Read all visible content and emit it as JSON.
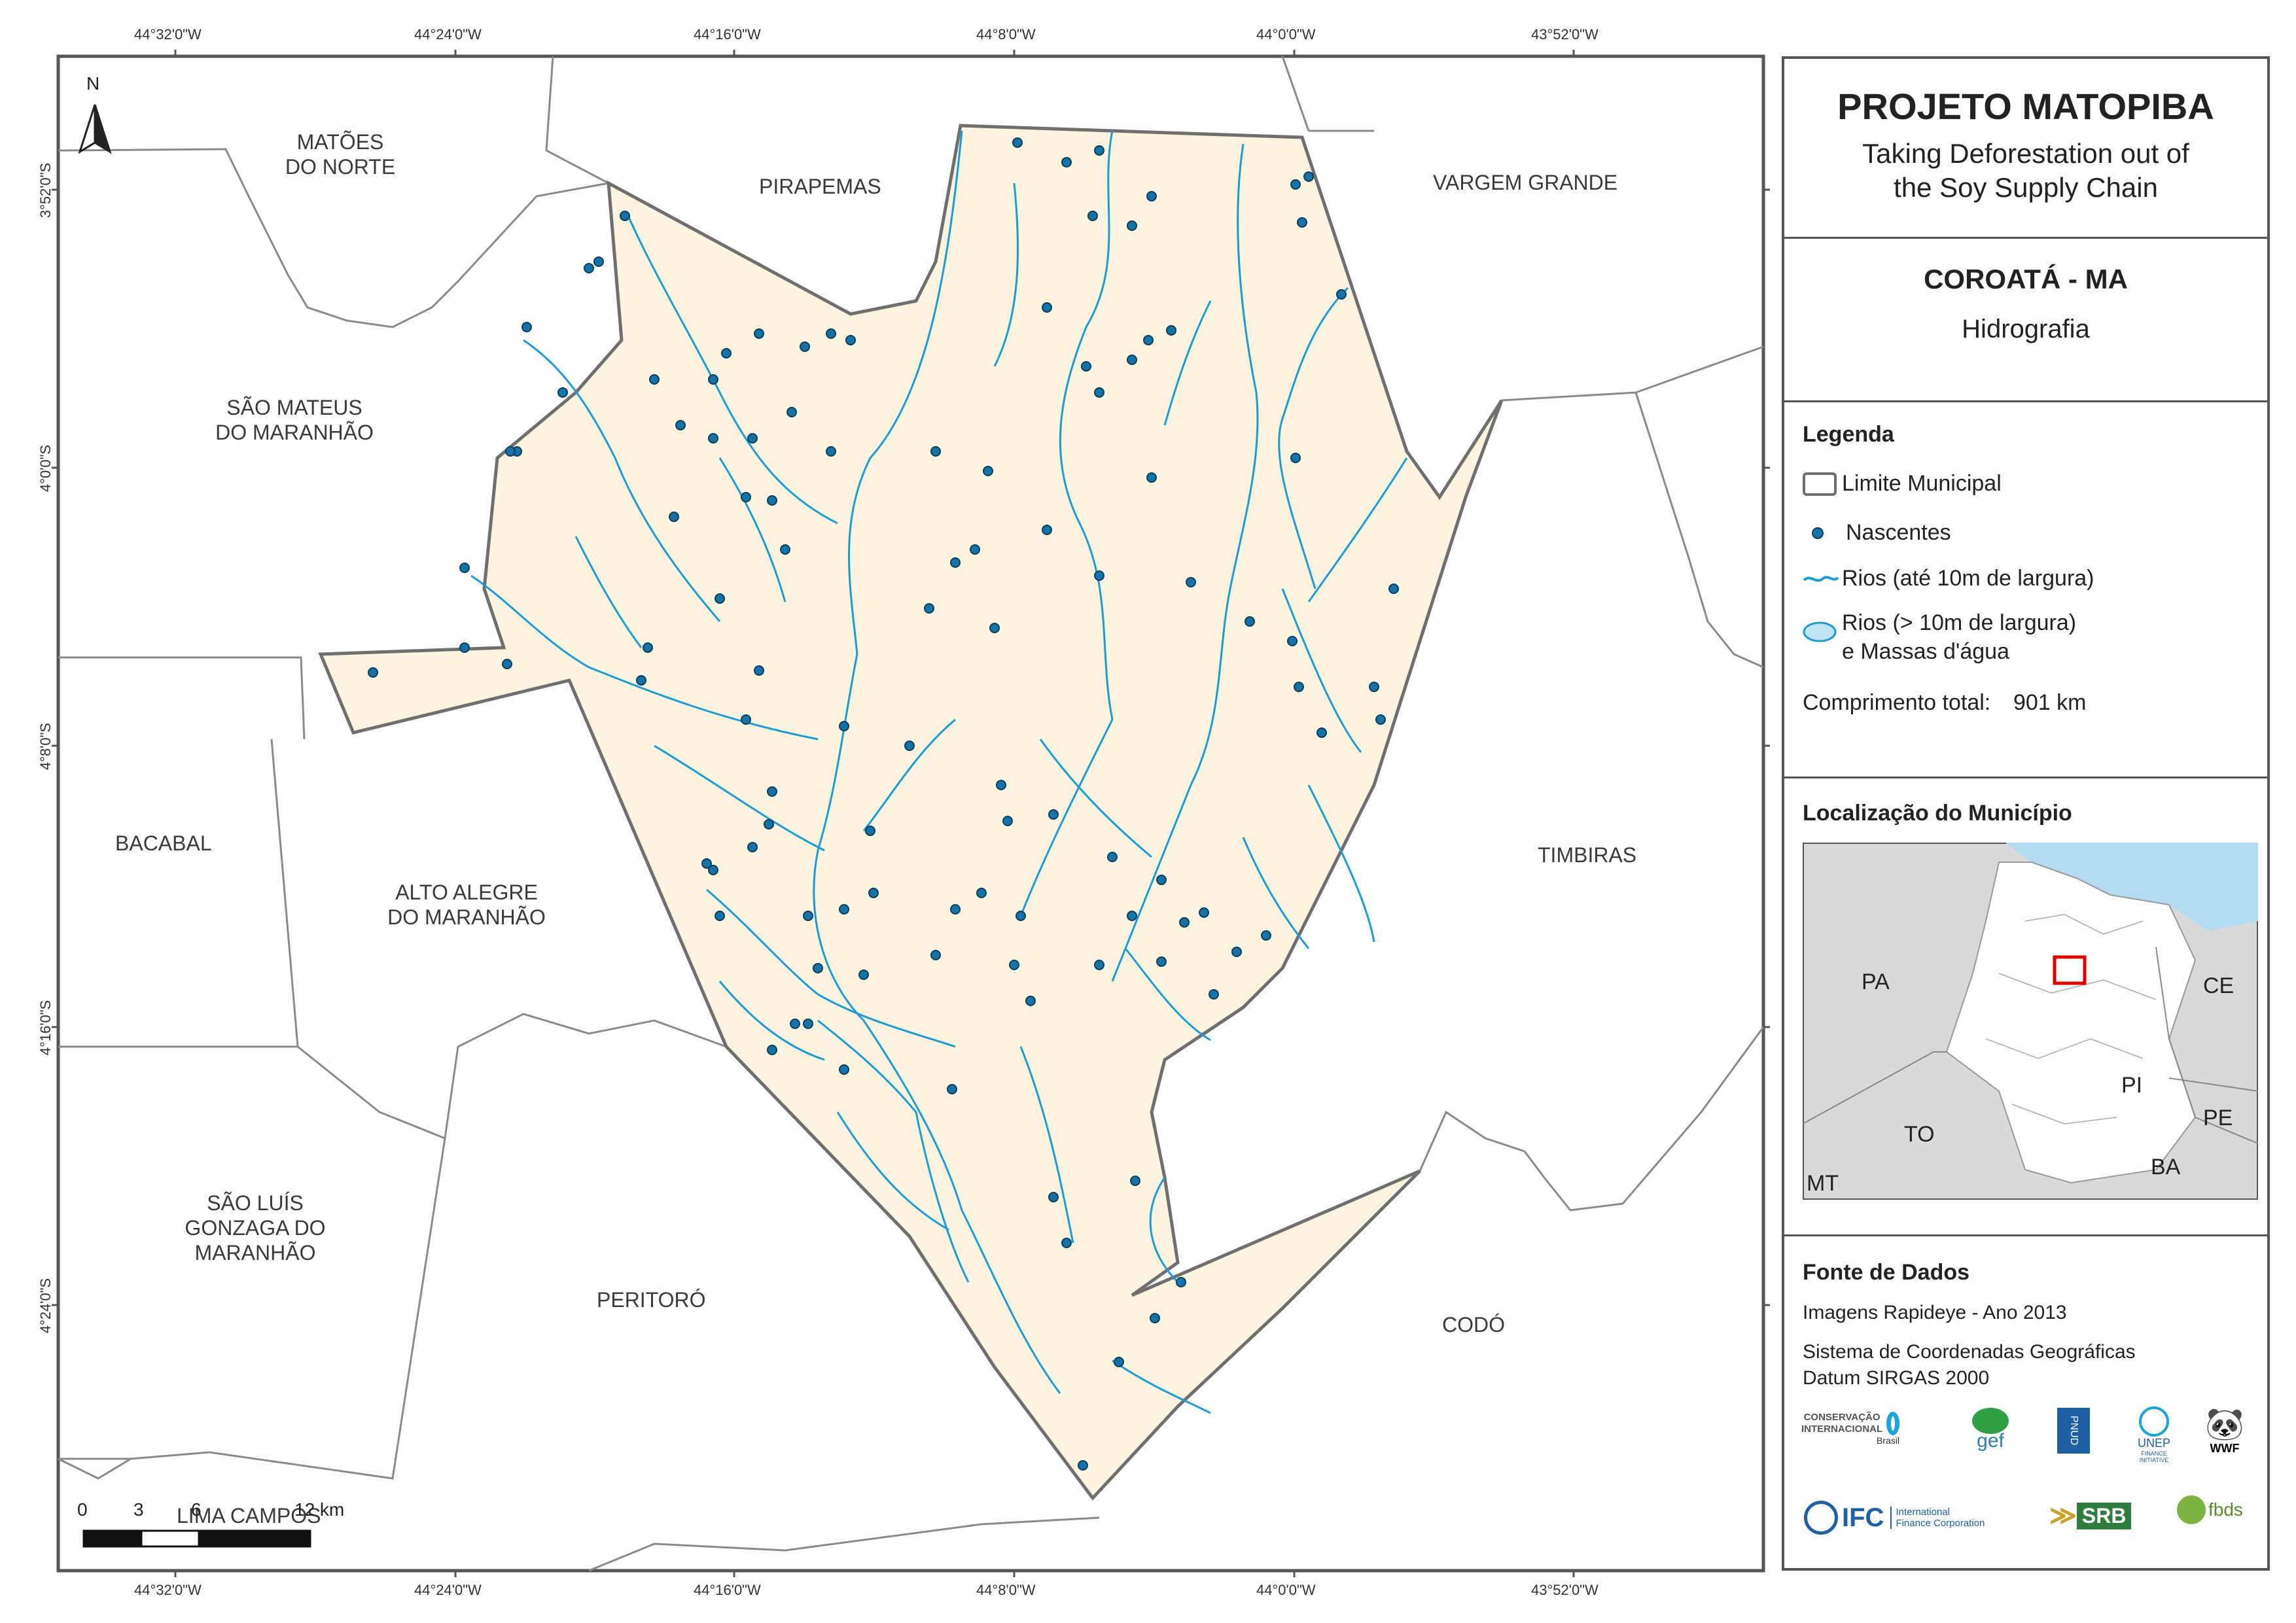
{
  "coords": {
    "lon": [
      "44°32'0\"W",
      "44°24'0\"W",
      "44°16'0\"W",
      "44°8'0\"W",
      "44°0'0\"W",
      "43°52'0\"W"
    ],
    "lat": [
      "3°52'0\"S",
      "4°0'0\"S",
      "4°8'0\"S",
      "4°16'0\"S",
      "4°24'0\"S"
    ]
  },
  "north_label": "N",
  "municipalities": {
    "matoes": "MATÕES\nDO NORTE",
    "pirapemas": "PIRAPEMAS",
    "vargem": "VARGEM GRANDE",
    "sao_mateus": "SÃO MATEUS\nDO MARANHÃO",
    "bacabal": "BACABAL",
    "alto_alegre": "ALTO ALEGRE\nDO MARANHÃO",
    "timbiras": "TIMBIRAS",
    "sao_luis": "SÃO LUÍS\nGONZAGA DO\nMARANHÃO",
    "peritoro": "PERITORÓ",
    "codo": "CODÓ",
    "lima_campos": "LIMA CAMPOS"
  },
  "scale_bar": {
    "ticks": [
      "0",
      "3",
      "6",
      "12 km"
    ]
  },
  "panel": {
    "title": "PROJETO MATOPIBA",
    "subtitle_line1": "Taking Deforestation out of",
    "subtitle_line2": "the Soy Supply Chain",
    "municipio": "COROATÁ - MA",
    "tema": "Hidrografia",
    "legend_title": "Legenda",
    "legend": {
      "limite": "Limite Municipal",
      "nascentes": "Nascentes",
      "rios_small": "Rios (até 10m de largura)",
      "rios_big1": "Rios (> 10m de largura)",
      "rios_big2": "e Massas d'água"
    },
    "comprimento_label": "Comprimento total:",
    "comprimento_value": "901 km",
    "localizacao_title": "Localização do Município",
    "inset_labels": {
      "pa": "PA",
      "ce": "CE",
      "pi": "PI",
      "pe": "PE",
      "to": "TO",
      "ba": "BA",
      "mt": "MT"
    },
    "fonte_title": "Fonte de Dados",
    "fonte_imagens": "Imagens Rapideye - Ano 2013",
    "fonte_sistema": "Sistema de Coordenadas Geográficas",
    "fonte_datum": "Datum SIRGAS 2000",
    "logos": {
      "ci": "CONSERVAÇÃO INTERNACIONAL",
      "ci_sub": "Brasil",
      "gef": "gef",
      "pnud": "PNUD",
      "unep": "UNEP",
      "unep_sub": "FINANCE INITIATIVE",
      "wwf": "WWF",
      "ifc": "IFC",
      "ifc_sub1": "International",
      "ifc_sub2": "Finance Corporation",
      "srb": "SRB",
      "fbds": "fbds"
    }
  }
}
